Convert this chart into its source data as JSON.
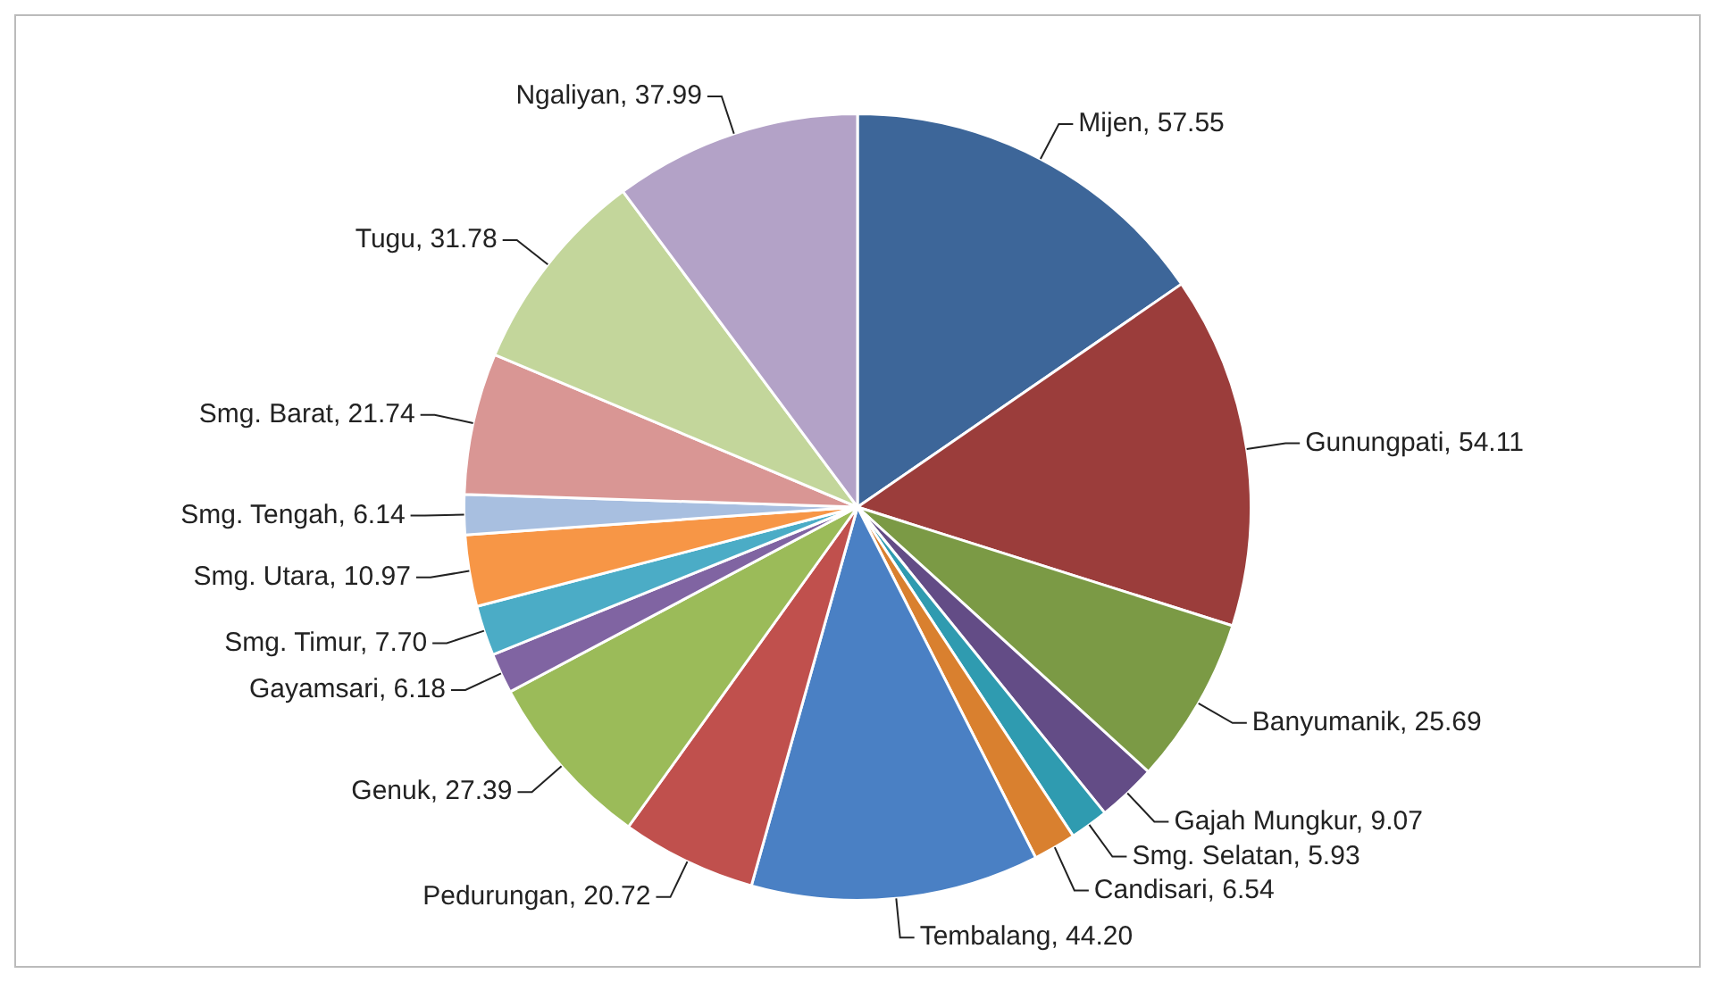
{
  "chart_data": {
    "type": "pie",
    "categories": [
      "Mijen",
      "Gunungpati",
      "Banyumanik",
      "Gajah Mungkur",
      "Smg. Selatan",
      "Candisari",
      "Tembalang",
      "Pedurungan",
      "Genuk",
      "Gayamsari",
      "Smg. Timur",
      "Smg. Utara",
      "Smg. Tengah",
      "Smg. Barat",
      "Tugu",
      "Ngaliyan"
    ],
    "values": [
      57.55,
      54.11,
      25.69,
      9.07,
      5.93,
      6.54,
      44.2,
      20.72,
      27.39,
      6.18,
      7.7,
      10.97,
      6.14,
      21.74,
      31.78,
      37.99
    ],
    "value_labels": [
      "57.55",
      "54.11",
      "25.69",
      "9.07",
      "5.93",
      "6.54",
      "44.20",
      "20.72",
      "27.39",
      "6.18",
      "7.70",
      "10.97",
      "6.14",
      "21.74",
      "31.78",
      "37.99"
    ],
    "colors": [
      "#3d6699",
      "#9b3d3b",
      "#7b9a45",
      "#634c86",
      "#2f9bb0",
      "#d9802f",
      "#4a80c4",
      "#c0504d",
      "#9bbb59",
      "#8064a2",
      "#4bacc6",
      "#f79646",
      "#a8bfe0",
      "#d99694",
      "#c3d69b",
      "#b3a2c7"
    ],
    "legend": false
  }
}
